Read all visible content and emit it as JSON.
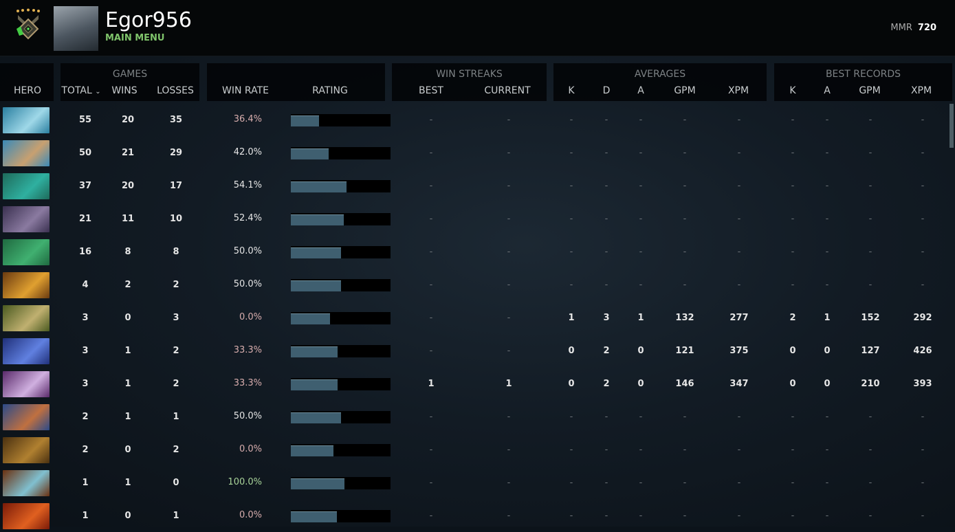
{
  "profile": {
    "name": "Egor956",
    "subtitle": "MAIN MENU",
    "mmr_label": "MMR",
    "mmr_value": "720"
  },
  "headers": {
    "hero": "HERO",
    "games": "GAMES",
    "total": "TOTAL",
    "wins": "WINS",
    "losses": "LOSSES",
    "win_rate": "WIN RATE",
    "rating": "RATING",
    "win_streaks": "WIN STREAKS",
    "best": "BEST",
    "current": "CURRENT",
    "averages": "AVERAGES",
    "best_records": "BEST RECORDS",
    "k": "K",
    "d": "D",
    "a": "A",
    "gpm": "GPM",
    "xpm": "XPM",
    "sort_icon": "chevron-down-icon"
  },
  "colors": {
    "win_rate_low": "#d9aeae",
    "win_rate_mid": "#e6e6e6",
    "win_rate_high": "#a9d49a",
    "rating_bar": "#3f5f70",
    "accent": "#7fc46b"
  },
  "rows": [
    {
      "hero_colors": [
        "#2a7fa0",
        "#9fd8e8"
      ],
      "total": "55",
      "wins": "20",
      "losses": "35",
      "win_rate": "36.4%",
      "rating": 0.28,
      "best": "-",
      "current": "-",
      "k": "-",
      "d": "-",
      "a": "-",
      "gpm": "-",
      "xpm": "-",
      "bk": "-",
      "ba": "-",
      "bgpm": "-",
      "bxpm": "-"
    },
    {
      "hero_colors": [
        "#3a8ab8",
        "#c8a070"
      ],
      "total": "50",
      "wins": "21",
      "losses": "29",
      "win_rate": "42.0%",
      "rating": 0.38,
      "best": "-",
      "current": "-",
      "k": "-",
      "d": "-",
      "a": "-",
      "gpm": "-",
      "xpm": "-",
      "bk": "-",
      "ba": "-",
      "bgpm": "-",
      "bxpm": "-"
    },
    {
      "hero_colors": [
        "#1e6a5a",
        "#2fb0a0"
      ],
      "total": "37",
      "wins": "20",
      "losses": "17",
      "win_rate": "54.1%",
      "rating": 0.56,
      "best": "-",
      "current": "-",
      "k": "-",
      "d": "-",
      "a": "-",
      "gpm": "-",
      "xpm": "-",
      "bk": "-",
      "ba": "-",
      "bgpm": "-",
      "bxpm": "-"
    },
    {
      "hero_colors": [
        "#3a3050",
        "#8a7aa0"
      ],
      "total": "21",
      "wins": "11",
      "losses": "10",
      "win_rate": "52.4%",
      "rating": 0.53,
      "best": "-",
      "current": "-",
      "k": "-",
      "d": "-",
      "a": "-",
      "gpm": "-",
      "xpm": "-",
      "bk": "-",
      "ba": "-",
      "bgpm": "-",
      "bxpm": "-"
    },
    {
      "hero_colors": [
        "#1f6a40",
        "#40b070"
      ],
      "total": "16",
      "wins": "8",
      "losses": "8",
      "win_rate": "50.0%",
      "rating": 0.5,
      "best": "-",
      "current": "-",
      "k": "-",
      "d": "-",
      "a": "-",
      "gpm": "-",
      "xpm": "-",
      "bk": "-",
      "ba": "-",
      "bgpm": "-",
      "bxpm": "-"
    },
    {
      "hero_colors": [
        "#6a3a10",
        "#e0a030"
      ],
      "total": "4",
      "wins": "2",
      "losses": "2",
      "win_rate": "50.0%",
      "rating": 0.5,
      "best": "-",
      "current": "-",
      "k": "-",
      "d": "-",
      "a": "-",
      "gpm": "-",
      "xpm": "-",
      "bk": "-",
      "ba": "-",
      "bgpm": "-",
      "bxpm": "-"
    },
    {
      "hero_colors": [
        "#4a5a20",
        "#c0b070"
      ],
      "total": "3",
      "wins": "0",
      "losses": "3",
      "win_rate": "0.0%",
      "rating": 0.39,
      "best": "-",
      "current": "-",
      "k": "1",
      "d": "3",
      "a": "1",
      "gpm": "132",
      "xpm": "277",
      "bk": "2",
      "ba": "1",
      "bgpm": "152",
      "bxpm": "292"
    },
    {
      "hero_colors": [
        "#20307a",
        "#6080e0"
      ],
      "total": "3",
      "wins": "1",
      "losses": "2",
      "win_rate": "33.3%",
      "rating": 0.47,
      "best": "-",
      "current": "-",
      "k": "0",
      "d": "2",
      "a": "0",
      "gpm": "121",
      "xpm": "375",
      "bk": "0",
      "ba": "0",
      "bgpm": "127",
      "bxpm": "426"
    },
    {
      "hero_colors": [
        "#5a2a6a",
        "#d0b0e0"
      ],
      "total": "3",
      "wins": "1",
      "losses": "2",
      "win_rate": "33.3%",
      "rating": 0.47,
      "best": "1",
      "current": "1",
      "k": "0",
      "d": "2",
      "a": "0",
      "gpm": "146",
      "xpm": "347",
      "bk": "0",
      "ba": "0",
      "bgpm": "210",
      "bxpm": "393"
    },
    {
      "hero_colors": [
        "#2a4a8a",
        "#c07040"
      ],
      "total": "2",
      "wins": "1",
      "losses": "1",
      "win_rate": "50.0%",
      "rating": 0.5,
      "best": "-",
      "current": "-",
      "k": "-",
      "d": "-",
      "a": "-",
      "gpm": "-",
      "xpm": "-",
      "bk": "-",
      "ba": "-",
      "bgpm": "-",
      "bxpm": "-"
    },
    {
      "hero_colors": [
        "#4a3010",
        "#b08030"
      ],
      "total": "2",
      "wins": "0",
      "losses": "2",
      "win_rate": "0.0%",
      "rating": 0.43,
      "best": "-",
      "current": "-",
      "k": "-",
      "d": "-",
      "a": "-",
      "gpm": "-",
      "xpm": "-",
      "bk": "-",
      "ba": "-",
      "bgpm": "-",
      "bxpm": "-"
    },
    {
      "hero_colors": [
        "#6a3010",
        "#80c0d0"
      ],
      "total": "1",
      "wins": "1",
      "losses": "0",
      "win_rate": "100.0%",
      "rating": 0.54,
      "best": "-",
      "current": "-",
      "k": "-",
      "d": "-",
      "a": "-",
      "gpm": "-",
      "xpm": "-",
      "bk": "-",
      "ba": "-",
      "bgpm": "-",
      "bxpm": "-"
    },
    {
      "hero_colors": [
        "#7a1a08",
        "#e06020"
      ],
      "total": "1",
      "wins": "0",
      "losses": "1",
      "win_rate": "0.0%",
      "rating": 0.46,
      "best": "-",
      "current": "-",
      "k": "-",
      "d": "-",
      "a": "-",
      "gpm": "-",
      "xpm": "-",
      "bk": "-",
      "ba": "-",
      "bgpm": "-",
      "bxpm": "-"
    }
  ]
}
